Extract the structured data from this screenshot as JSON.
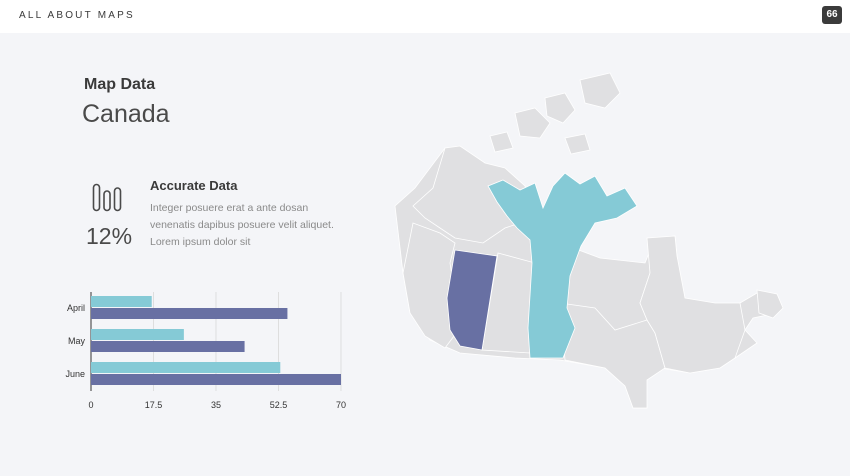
{
  "header": {
    "brand": "ALL ABOUT MAPS",
    "page_number": "66"
  },
  "section": {
    "label": "Map Data",
    "country": "Canada"
  },
  "stat": {
    "icon": "bar-chart-icon",
    "value": "12%",
    "title": "Accurate Data",
    "description": "Integer posuere erat a ante dosan venenatis dapibus posuere velit aliquet. Lorem ipsum dolor sit"
  },
  "colors": {
    "accent_teal": "#85cad6",
    "accent_purple": "#6870a3",
    "map_base": "#e0e0e2"
  },
  "chart_data": {
    "type": "bar",
    "orientation": "horizontal",
    "categories": [
      "April",
      "May",
      "June"
    ],
    "series": [
      {
        "values": [
          17,
          26,
          53
        ],
        "color": "#85cad6"
      },
      {
        "values": [
          55,
          43,
          70
        ],
        "color": "#6870a3"
      }
    ],
    "x_ticks": [
      0,
      17.5,
      35,
      52.5,
      70
    ],
    "x_tick_labels": [
      "0",
      "17.5",
      "35",
      "52.5",
      "70"
    ],
    "xlim": [
      0,
      70
    ],
    "grid": true
  },
  "map": {
    "highlighted_regions": [
      {
        "region": "Alberta",
        "color": "#6870a3"
      },
      {
        "region": "Nunavut",
        "color": "#85cad6"
      },
      {
        "region": "Manitoba",
        "color": "#85cad6"
      }
    ]
  }
}
